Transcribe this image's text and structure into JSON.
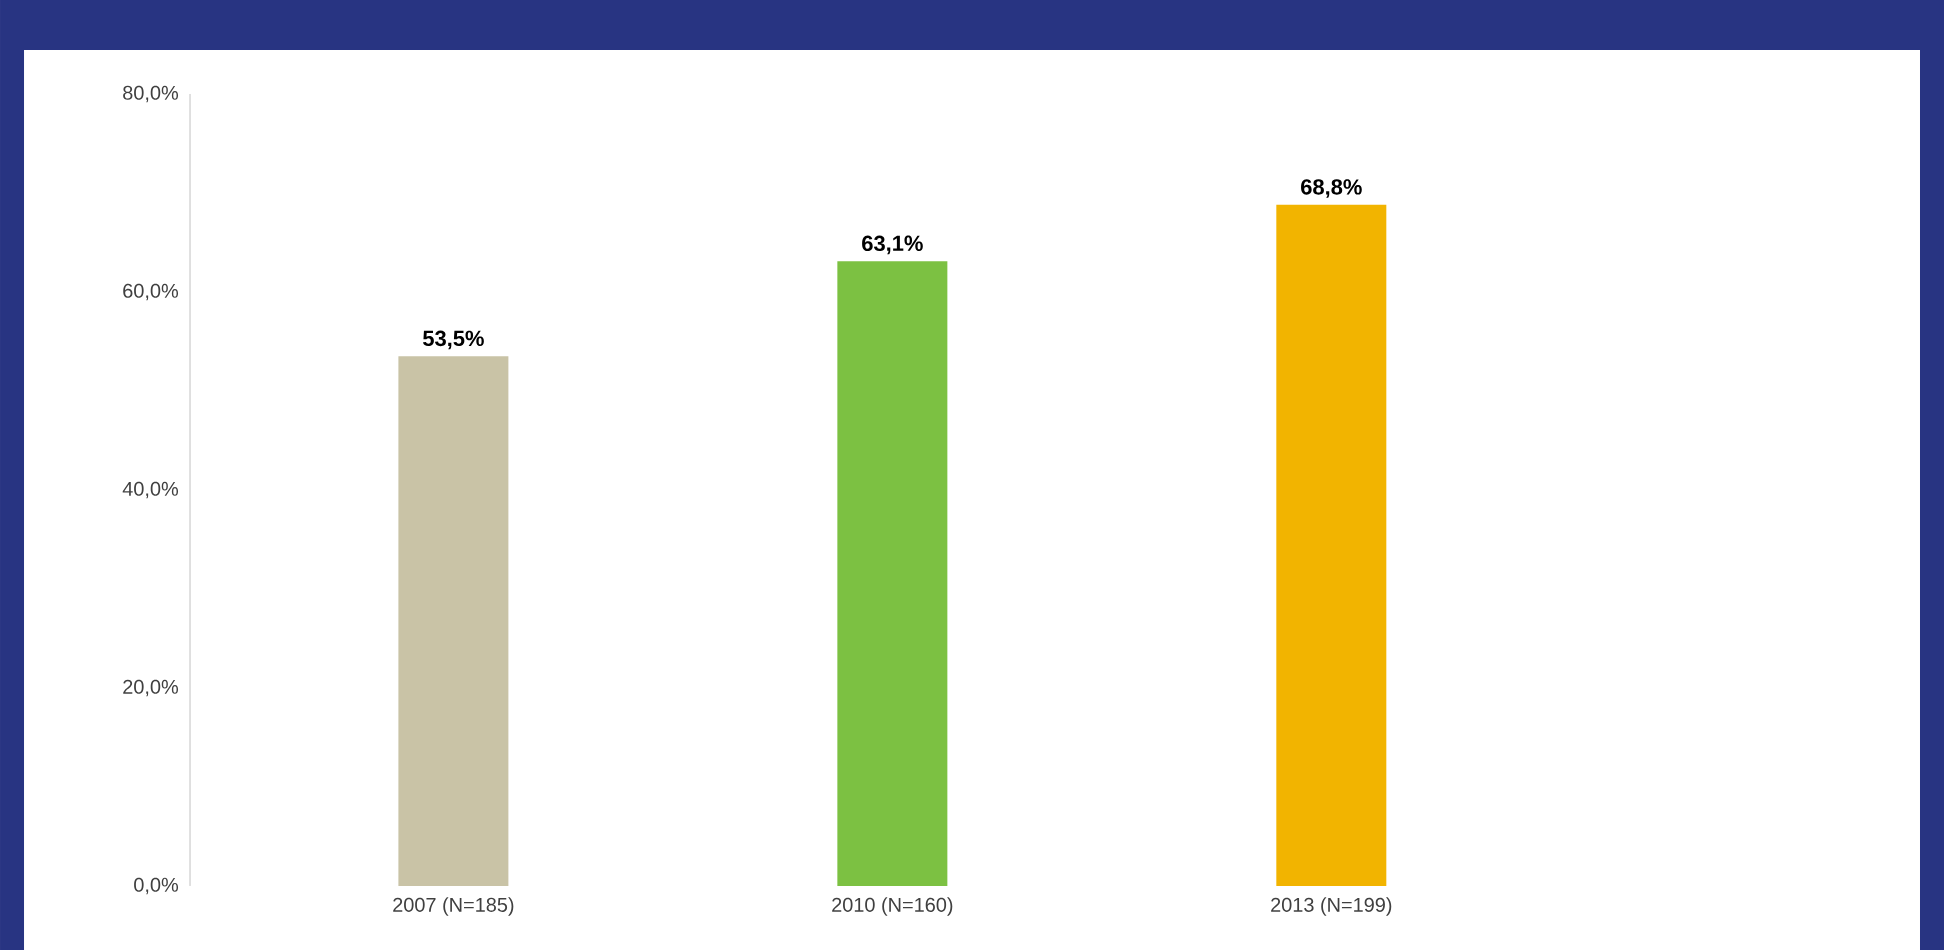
{
  "chart_data": {
    "type": "bar",
    "categories": [
      "2007 (N=185)",
      "2010 (N=160)",
      "2013 (N=199)"
    ],
    "values": [
      53.5,
      63.1,
      68.8
    ],
    "colors": [
      "#c9c3a6",
      "#7cc142",
      "#f2b400"
    ],
    "value_labels": [
      "53,5%",
      "63,1%",
      "68,8%"
    ],
    "ylim": [
      0,
      80
    ],
    "yticks": [
      {
        "value": 0,
        "label": "0,0%"
      },
      {
        "value": 20,
        "label": "20,0%"
      },
      {
        "value": 40,
        "label": "40,0%"
      },
      {
        "value": 60,
        "label": "60,0%"
      },
      {
        "value": 80,
        "label": "80,0%"
      }
    ],
    "grid": false
  }
}
